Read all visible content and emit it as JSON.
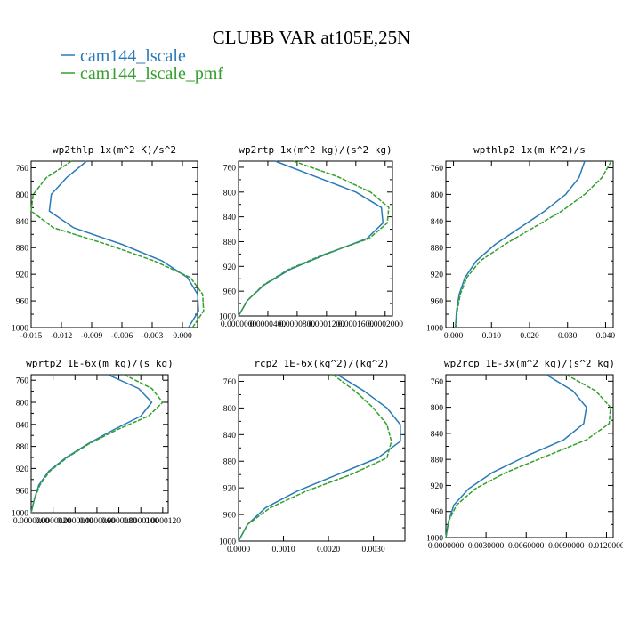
{
  "title": "CLUBB VAR at105E,25N",
  "legend": [
    {
      "name": "cam144_lscale",
      "color": "#2a7ab8"
    },
    {
      "name": "cam144_lscale_pmf",
      "color": "#33a02c"
    }
  ],
  "chart_data": [
    {
      "type": "line",
      "title": "wp2thlp   1x(m^2 K)/s^2",
      "xlim": [
        -0.015,
        0.0015
      ],
      "ylim": [
        1000,
        750
      ],
      "xticks": [
        -0.015,
        -0.012,
        -0.009,
        -0.006,
        -0.003,
        0.0
      ],
      "xtick_labels": [
        "-0.015",
        "-0.012",
        "-0.009",
        "-0.006",
        "-0.003",
        "0.000"
      ],
      "yticks": [
        760,
        800,
        840,
        880,
        920,
        960,
        1000
      ],
      "ytick_labels": [
        "760",
        "800",
        "840",
        "880",
        "920",
        "960",
        "1000"
      ],
      "y": [
        750,
        775,
        800,
        825,
        850,
        875,
        900,
        925,
        950,
        975,
        1000
      ],
      "series": [
        {
          "name": "cam144_lscale",
          "x": [
            -0.0095,
            -0.0115,
            -0.013,
            -0.0132,
            -0.0108,
            -0.006,
            -0.002,
            0.0005,
            0.0015,
            0.0016,
            0.0006
          ]
        },
        {
          "name": "cam144_lscale_pmf",
          "x": [
            -0.011,
            -0.0135,
            -0.0148,
            -0.015,
            -0.0128,
            -0.0075,
            -0.0028,
            0.0008,
            0.002,
            0.0021,
            0.001
          ]
        }
      ]
    },
    {
      "type": "line",
      "title": "wp2rtp   1x(m^2 kg)/(s^2 kg)",
      "xlim": [
        0.0,
        0.00021
      ],
      "ylim": [
        1000,
        750
      ],
      "xticks": [
        0.0,
        4e-05,
        8e-05,
        0.00012,
        0.00016,
        0.0002
      ],
      "xtick_labels": [
        "0.0000000",
        "0.0000400",
        "0.0000800",
        "0.0001200",
        "0.0001600",
        "0.0002000"
      ],
      "yticks": [
        760,
        800,
        840,
        880,
        920,
        960,
        1000
      ],
      "ytick_labels": [
        "760",
        "800",
        "840",
        "880",
        "920",
        "960",
        "1000"
      ],
      "y": [
        750,
        775,
        800,
        825,
        850,
        875,
        900,
        925,
        950,
        975,
        1000
      ],
      "series": [
        {
          "name": "cam144_lscale",
          "x": [
            5e-05,
            0.000105,
            0.00016,
            0.000195,
            0.000197,
            0.000175,
            0.00012,
            7e-05,
            3.5e-05,
            1.2e-05,
            0.0
          ]
        },
        {
          "name": "cam144_lscale_pmf",
          "x": [
            7.5e-05,
            0.000135,
            0.00018,
            0.000205,
            0.000203,
            0.000178,
            0.000118,
            6.8e-05,
            3.4e-05,
            1.2e-05,
            0.0
          ]
        }
      ]
    },
    {
      "type": "line",
      "title": "wpthlp2   1x(m K^2)/s",
      "xlim": [
        -0.002,
        0.042
      ],
      "ylim": [
        1000,
        750
      ],
      "xticks": [
        0.0,
        0.01,
        0.02,
        0.03,
        0.04
      ],
      "xtick_labels": [
        "0.000",
        "0.010",
        "0.020",
        "0.030",
        "0.040"
      ],
      "yticks": [
        760,
        800,
        840,
        880,
        920,
        960,
        1000
      ],
      "ytick_labels": [
        "760",
        "800",
        "840",
        "880",
        "920",
        "960",
        "1000"
      ],
      "y": [
        750,
        775,
        800,
        825,
        850,
        875,
        900,
        925,
        950,
        975,
        1000
      ],
      "series": [
        {
          "name": "cam144_lscale",
          "x": [
            0.0345,
            0.033,
            0.0295,
            0.024,
            0.0175,
            0.011,
            0.006,
            0.003,
            0.0015,
            0.0008,
            0.0005
          ]
        },
        {
          "name": "cam144_lscale_pmf",
          "x": [
            0.0415,
            0.039,
            0.0345,
            0.0285,
            0.021,
            0.0135,
            0.007,
            0.0035,
            0.0018,
            0.001,
            0.0006
          ]
        }
      ]
    },
    {
      "type": "line",
      "title": "wprtp2   1E-6x(m kg)/(s kg)",
      "xlim": [
        0.0,
        1.25e-05
      ],
      "ylim": [
        1000,
        750
      ],
      "xticks": [
        0.0,
        2e-06,
        4e-06,
        6e-06,
        8e-06,
        1e-05,
        1.2e-05
      ],
      "xtick_labels": [
        "0.0000000",
        "0.0000020",
        "0.0000040",
        "0.0000060",
        "0.0000080",
        "0.0000100",
        "0.0000120"
      ],
      "yticks": [
        760,
        800,
        840,
        880,
        920,
        960,
        1000
      ],
      "ytick_labels": [
        "760",
        "800",
        "840",
        "880",
        "920",
        "960",
        "1000"
      ],
      "y": [
        750,
        775,
        800,
        825,
        850,
        875,
        900,
        925,
        950,
        975,
        1000
      ],
      "series": [
        {
          "name": "cam144_lscale",
          "x": [
            7e-06,
            9.8e-06,
            1.1e-05,
            1e-05,
            7.5e-06,
            5.2e-06,
            3.2e-06,
            1.6e-06,
            7e-07,
            3e-07,
            0.0
          ]
        },
        {
          "name": "cam144_lscale_pmf",
          "x": [
            8.5e-06,
            1.1e-05,
            1.2e-05,
            1.07e-05,
            7.8e-06,
            5.3e-06,
            3.3e-06,
            1.7e-06,
            8e-07,
            3e-07,
            0.0
          ]
        }
      ]
    },
    {
      "type": "line",
      "title": "rcp2   1E-6x(kg^2)/(kg^2)",
      "xlim": [
        0.0,
        0.0037
      ],
      "ylim": [
        1000,
        750
      ],
      "xticks": [
        0.0,
        0.001,
        0.002,
        0.003
      ],
      "xtick_labels": [
        "0.0000",
        "0.0010",
        "0.0020",
        "0.0030"
      ],
      "yticks": [
        760,
        800,
        840,
        880,
        920,
        960,
        1000
      ],
      "ytick_labels": [
        "760",
        "800",
        "840",
        "880",
        "920",
        "960",
        "1000"
      ],
      "y": [
        750,
        775,
        800,
        825,
        850,
        875,
        900,
        925,
        950,
        975,
        1000
      ],
      "series": [
        {
          "name": "cam144_lscale",
          "x": [
            0.0022,
            0.0028,
            0.0033,
            0.0036,
            0.0036,
            0.0031,
            0.0022,
            0.0013,
            0.0006,
            0.0002,
            0.0
          ]
        },
        {
          "name": "cam144_lscale_pmf",
          "x": [
            0.0021,
            0.0026,
            0.003,
            0.0033,
            0.0034,
            0.0033,
            0.0025,
            0.0015,
            0.0007,
            0.0002,
            0.0
          ]
        }
      ]
    },
    {
      "type": "line",
      "title": "wp2rcp   1E-3x(m^2 kg)/(s^2 kg)",
      "xlim": [
        0.0,
        0.0125
      ],
      "ylim": [
        1000,
        750
      ],
      "xticks": [
        0.0,
        0.003,
        0.006,
        0.009,
        0.012
      ],
      "xtick_labels": [
        "0.0000000",
        "0.0030000",
        "0.0060000",
        "0.0090000",
        "0.0120000"
      ],
      "yticks": [
        760,
        800,
        840,
        880,
        920,
        960,
        1000
      ],
      "ytick_labels": [
        "760",
        "800",
        "840",
        "880",
        "920",
        "960",
        "1000"
      ],
      "y": [
        750,
        775,
        800,
        825,
        850,
        875,
        900,
        925,
        950,
        975,
        1000
      ],
      "series": [
        {
          "name": "cam144_lscale",
          "x": [
            0.0075,
            0.0095,
            0.0105,
            0.0103,
            0.0088,
            0.006,
            0.0035,
            0.0017,
            0.0006,
            0.0002,
            0.0
          ]
        },
        {
          "name": "cam144_lscale_pmf",
          "x": [
            0.009,
            0.0112,
            0.0123,
            0.0122,
            0.0105,
            0.0075,
            0.0045,
            0.0022,
            0.0008,
            0.0002,
            0.0
          ]
        }
      ]
    }
  ]
}
